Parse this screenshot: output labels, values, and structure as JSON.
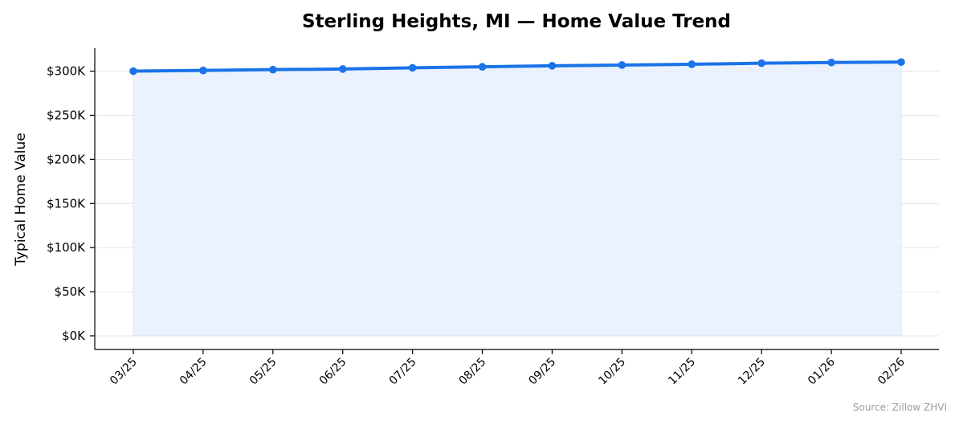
{
  "chart_data": {
    "type": "line",
    "title": "Sterling Heights, MI — Home Value Trend",
    "xlabel": "",
    "ylabel": "Typical Home Value",
    "categories": [
      "03/25",
      "04/25",
      "05/25",
      "06/25",
      "07/25",
      "08/25",
      "09/25",
      "10/25",
      "11/25",
      "12/25",
      "01/26",
      "02/26"
    ],
    "series": [
      {
        "values": [
          300000,
          300800,
          301700,
          302400,
          303800,
          304900,
          306100,
          306900,
          307800,
          309000,
          309800,
          310300
        ]
      }
    ],
    "yticks": [
      "$0K",
      "$50K",
      "$100K",
      "$150K",
      "$200K",
      "$250K",
      "$300K"
    ],
    "ytick_values": [
      0,
      50000,
      100000,
      150000,
      200000,
      250000,
      300000
    ],
    "ylim": [
      -15500,
      326000
    ],
    "grid": "y",
    "legend": "none",
    "source": "Source: Zillow ZHVI",
    "colors": {
      "line": "#1a73e8",
      "fill": "#e8f0fe",
      "grid": "#e6e6e6"
    }
  }
}
